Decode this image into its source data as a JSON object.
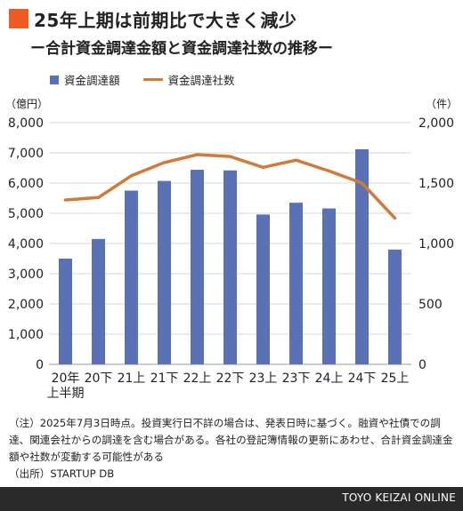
{
  "header": {
    "title": "25年上期は前期比で大きく減少",
    "subtitle": "ー合計資金調達金額と資金調達社数の推移ー",
    "accent_color": "#ee5a24"
  },
  "chart_data": {
    "type": "bar",
    "categories": [
      "20年\n上半期",
      "20下",
      "21上",
      "21下",
      "22上",
      "22下",
      "23上",
      "23下",
      "24上",
      "24下",
      "25上"
    ],
    "series": [
      {
        "name": "資金調達額",
        "type": "bar",
        "axis": "left",
        "color": "#5a72b5",
        "values": [
          3500,
          4150,
          5750,
          6070,
          6440,
          6420,
          4960,
          5350,
          5160,
          7120,
          3800
        ]
      },
      {
        "name": "資金調達社数",
        "type": "line",
        "axis": "right",
        "color": "#d07a3c",
        "values": [
          1360,
          1380,
          1560,
          1670,
          1735,
          1720,
          1630,
          1690,
          1600,
          1500,
          1210
        ]
      }
    ],
    "y_left": {
      "unit": "（億円）",
      "ylim": [
        0,
        8000
      ],
      "ticks": [
        0,
        1000,
        2000,
        3000,
        4000,
        5000,
        6000,
        7000,
        8000
      ]
    },
    "y_right": {
      "unit": "（件）",
      "ylim": [
        0,
        2000
      ],
      "ticks": [
        0,
        500,
        1000,
        1500,
        2000
      ]
    },
    "grid": true,
    "legend": "top-left"
  },
  "note": "（注）2025年7月3日時点。投資実行日不詳の場合は、発表日時に基づく。融資や社債での調達、関連会社からの調達を含む場合がある。各社の登記簿情報の更新にあわせ、合計資金調達金額や社数が変動する可能性がある",
  "source": "（出所）STARTUP DB",
  "footer": {
    "brand": "TOYO KEIZAI ONLINE"
  }
}
